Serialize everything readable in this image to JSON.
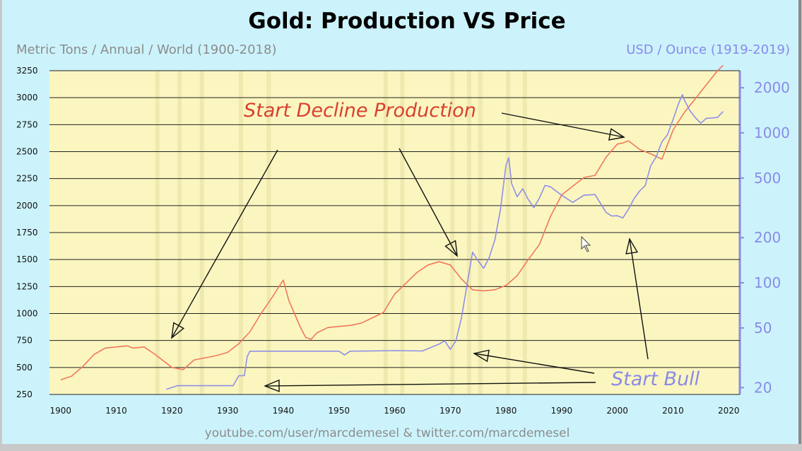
{
  "chart_data": {
    "type": "line",
    "title": "Gold: Production VS Price",
    "left_axis_label": "Metric Tons / Annual / World (1900-2018)",
    "right_axis_label": "USD / Ounce (1919-2019)",
    "x_ticks": [
      1900,
      1910,
      1920,
      1930,
      1940,
      1950,
      1960,
      1970,
      1980,
      1990,
      2000,
      2010,
      2020
    ],
    "y_left_ticks": [
      250,
      500,
      750,
      1000,
      1250,
      1500,
      1750,
      2000,
      2250,
      2500,
      2750,
      3000,
      3250
    ],
    "y_right_ticks": [
      20,
      50,
      100,
      200,
      500,
      1000,
      2000
    ],
    "xlim": [
      1898,
      2022
    ],
    "ylim_left": [
      250,
      3250
    ],
    "ylim_right": [
      18,
      2600
    ],
    "right_scale": "log",
    "grid": "horizontal",
    "series": [
      {
        "name": "Production",
        "axis": "left",
        "color": "#f0785a",
        "x": [
          1900,
          1902,
          1904,
          1906,
          1908,
          1910,
          1912,
          1913,
          1915,
          1917,
          1918,
          1920,
          1922,
          1924,
          1926,
          1928,
          1930,
          1932,
          1934,
          1936,
          1938,
          1940,
          1941,
          1942,
          1943,
          1944,
          1945,
          1946,
          1948,
          1950,
          1952,
          1954,
          1956,
          1958,
          1960,
          1962,
          1964,
          1966,
          1968,
          1970,
          1972,
          1974,
          1976,
          1978,
          1980,
          1982,
          1984,
          1986,
          1988,
          1990,
          1992,
          1994,
          1996,
          1998,
          2000,
          2001,
          2002,
          2004,
          2006,
          2008,
          2010,
          2012,
          2014,
          2016,
          2018,
          2019
        ],
        "values": [
          385,
          420,
          510,
          620,
          680,
          690,
          700,
          680,
          690,
          620,
          580,
          500,
          480,
          570,
          590,
          610,
          640,
          720,
          830,
          1000,
          1150,
          1310,
          1120,
          1000,
          880,
          780,
          760,
          820,
          870,
          880,
          890,
          910,
          960,
          1010,
          1180,
          1280,
          1380,
          1450,
          1480,
          1450,
          1320,
          1220,
          1210,
          1220,
          1260,
          1350,
          1500,
          1640,
          1900,
          2100,
          2180,
          2260,
          2280,
          2450,
          2570,
          2580,
          2600,
          2520,
          2480,
          2430,
          2700,
          2860,
          2990,
          3120,
          3250,
          3300
        ]
      },
      {
        "name": "Price",
        "axis": "right",
        "color": "#8f8fe8",
        "x": [
          1919,
          1921,
          1925,
          1929,
          1931,
          1932,
          1933,
          1933.5,
          1934,
          1940,
          1950,
          1951,
          1952,
          1960,
          1965,
          1968,
          1969,
          1970,
          1971,
          1972,
          1973,
          1974,
          1975,
          1976,
          1977,
          1978,
          1979,
          1980,
          1980.5,
          1981,
          1982,
          1983,
          1984,
          1985,
          1986,
          1987,
          1988,
          1990,
          1992,
          1994,
          1996,
          1998,
          1999,
          2000,
          2001,
          2002,
          2003,
          2004,
          2005,
          2006,
          2007,
          2008,
          2009,
          2010,
          2011,
          2011.7,
          2012,
          2013,
          2014,
          2015,
          2016,
          2017,
          2018,
          2019
        ],
        "values": [
          19.5,
          20.6,
          20.6,
          20.6,
          20.6,
          24.0,
          24.0,
          32.0,
          35,
          35,
          35,
          33,
          35,
          35.3,
          35.1,
          39,
          41,
          36,
          41,
          58,
          97,
          160,
          140,
          125,
          148,
          193,
          307,
          610,
          680,
          460,
          375,
          424,
          360,
          317,
          368,
          446,
          437,
          384,
          344,
          384,
          388,
          294,
          279,
          280,
          271,
          310,
          364,
          410,
          445,
          604,
          695,
          872,
          972,
          1225,
          1570,
          1800,
          1669,
          1411,
          1266,
          1160,
          1251,
          1257,
          1268,
          1390
        ]
      }
    ],
    "annotations": [
      {
        "text": "Start Decline Production",
        "color": "#d94030"
      },
      {
        "text": "Start Bull",
        "color": "#8a8ae8"
      }
    ],
    "footer": "youtube.com/user/marcdemesel & twitter.com/marcdemesel"
  }
}
